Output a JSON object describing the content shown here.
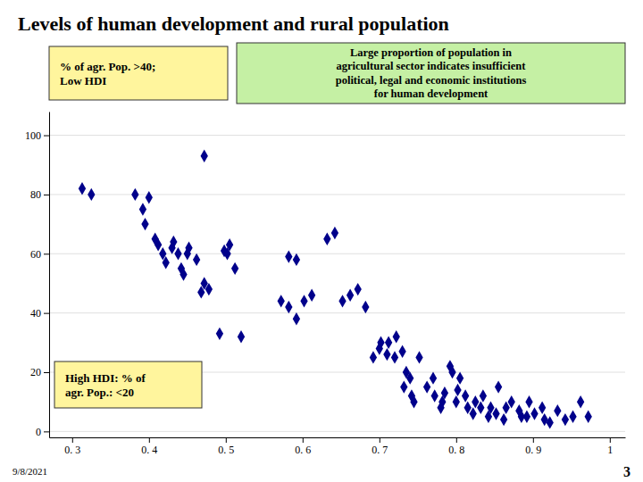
{
  "chart_data": {
    "type": "scatter",
    "title": "Levels of human development and rural population",
    "x": [
      0.313,
      0.325,
      0.382,
      0.392,
      0.395,
      0.4,
      0.408,
      0.412,
      0.418,
      0.422,
      0.43,
      0.432,
      0.438,
      0.442,
      0.445,
      0.45,
      0.452,
      0.462,
      0.468,
      0.472,
      0.478,
      0.492,
      0.498,
      0.502,
      0.505,
      0.512,
      0.52,
      0.572,
      0.582,
      0.592,
      0.602,
      0.612,
      0.632,
      0.642,
      0.652,
      0.662,
      0.672,
      0.682,
      0.692,
      0.7,
      0.702,
      0.71,
      0.712,
      0.72,
      0.722,
      0.73,
      0.732,
      0.735,
      0.74,
      0.742,
      0.745,
      0.752,
      0.762,
      0.77,
      0.772,
      0.78,
      0.782,
      0.785,
      0.792,
      0.795,
      0.8,
      0.802,
      0.805,
      0.812,
      0.815,
      0.822,
      0.825,
      0.832,
      0.835,
      0.842,
      0.845,
      0.852,
      0.855,
      0.862,
      0.865,
      0.872,
      0.882,
      0.885,
      0.892,
      0.895,
      0.902,
      0.912,
      0.915,
      0.922,
      0.932,
      0.942,
      0.952,
      0.962,
      0.972,
      0.472,
      0.582,
      0.592
    ],
    "values": [
      82,
      80,
      80,
      75,
      70,
      79,
      65,
      63,
      60,
      57,
      62,
      64,
      60,
      55,
      53,
      60,
      62,
      58,
      47,
      50,
      48,
      33,
      61,
      60,
      63,
      55,
      32,
      44,
      42,
      38,
      44,
      46,
      65,
      67,
      44,
      46,
      48,
      42,
      25,
      28,
      30,
      26,
      30,
      25,
      32,
      27,
      15,
      20,
      18,
      12,
      10,
      25,
      15,
      18,
      12,
      8,
      10,
      13,
      22,
      20,
      10,
      14,
      18,
      12,
      8,
      6,
      10,
      8,
      12,
      5,
      8,
      6,
      15,
      4,
      8,
      10,
      7,
      5,
      5,
      10,
      6,
      8,
      4,
      3,
      7,
      4,
      5,
      10,
      5,
      93,
      59,
      58
    ],
    "color": "#00008B",
    "marker": "diamond",
    "xlim": [
      0.27,
      1.02
    ],
    "ylim": [
      -2,
      108
    ],
    "xticks": [
      {
        "value": 0.3,
        "label": "0. 3"
      },
      {
        "value": 0.4,
        "label": "0. 4"
      },
      {
        "value": 0.5,
        "label": "0. 5"
      },
      {
        "value": 0.6,
        "label": "0. 6"
      },
      {
        "value": 0.7,
        "label": "0. 7"
      },
      {
        "value": 0.8,
        "label": "0. 8"
      },
      {
        "value": 0.9,
        "label": "0. 9"
      },
      1
    ],
    "yticks": [
      0,
      20,
      40,
      60,
      80,
      100
    ],
    "grid": true,
    "annotations": [
      "% of agr. Pop. >40;\nLow HDI",
      "High HDI: % of\nagr. Pop.: <20",
      "Large proportion of population in\nagricultural sector indicates insufficient\npolitical, legal and economic institutions\nfor human development",
      "9/8/2021",
      "3"
    ]
  }
}
